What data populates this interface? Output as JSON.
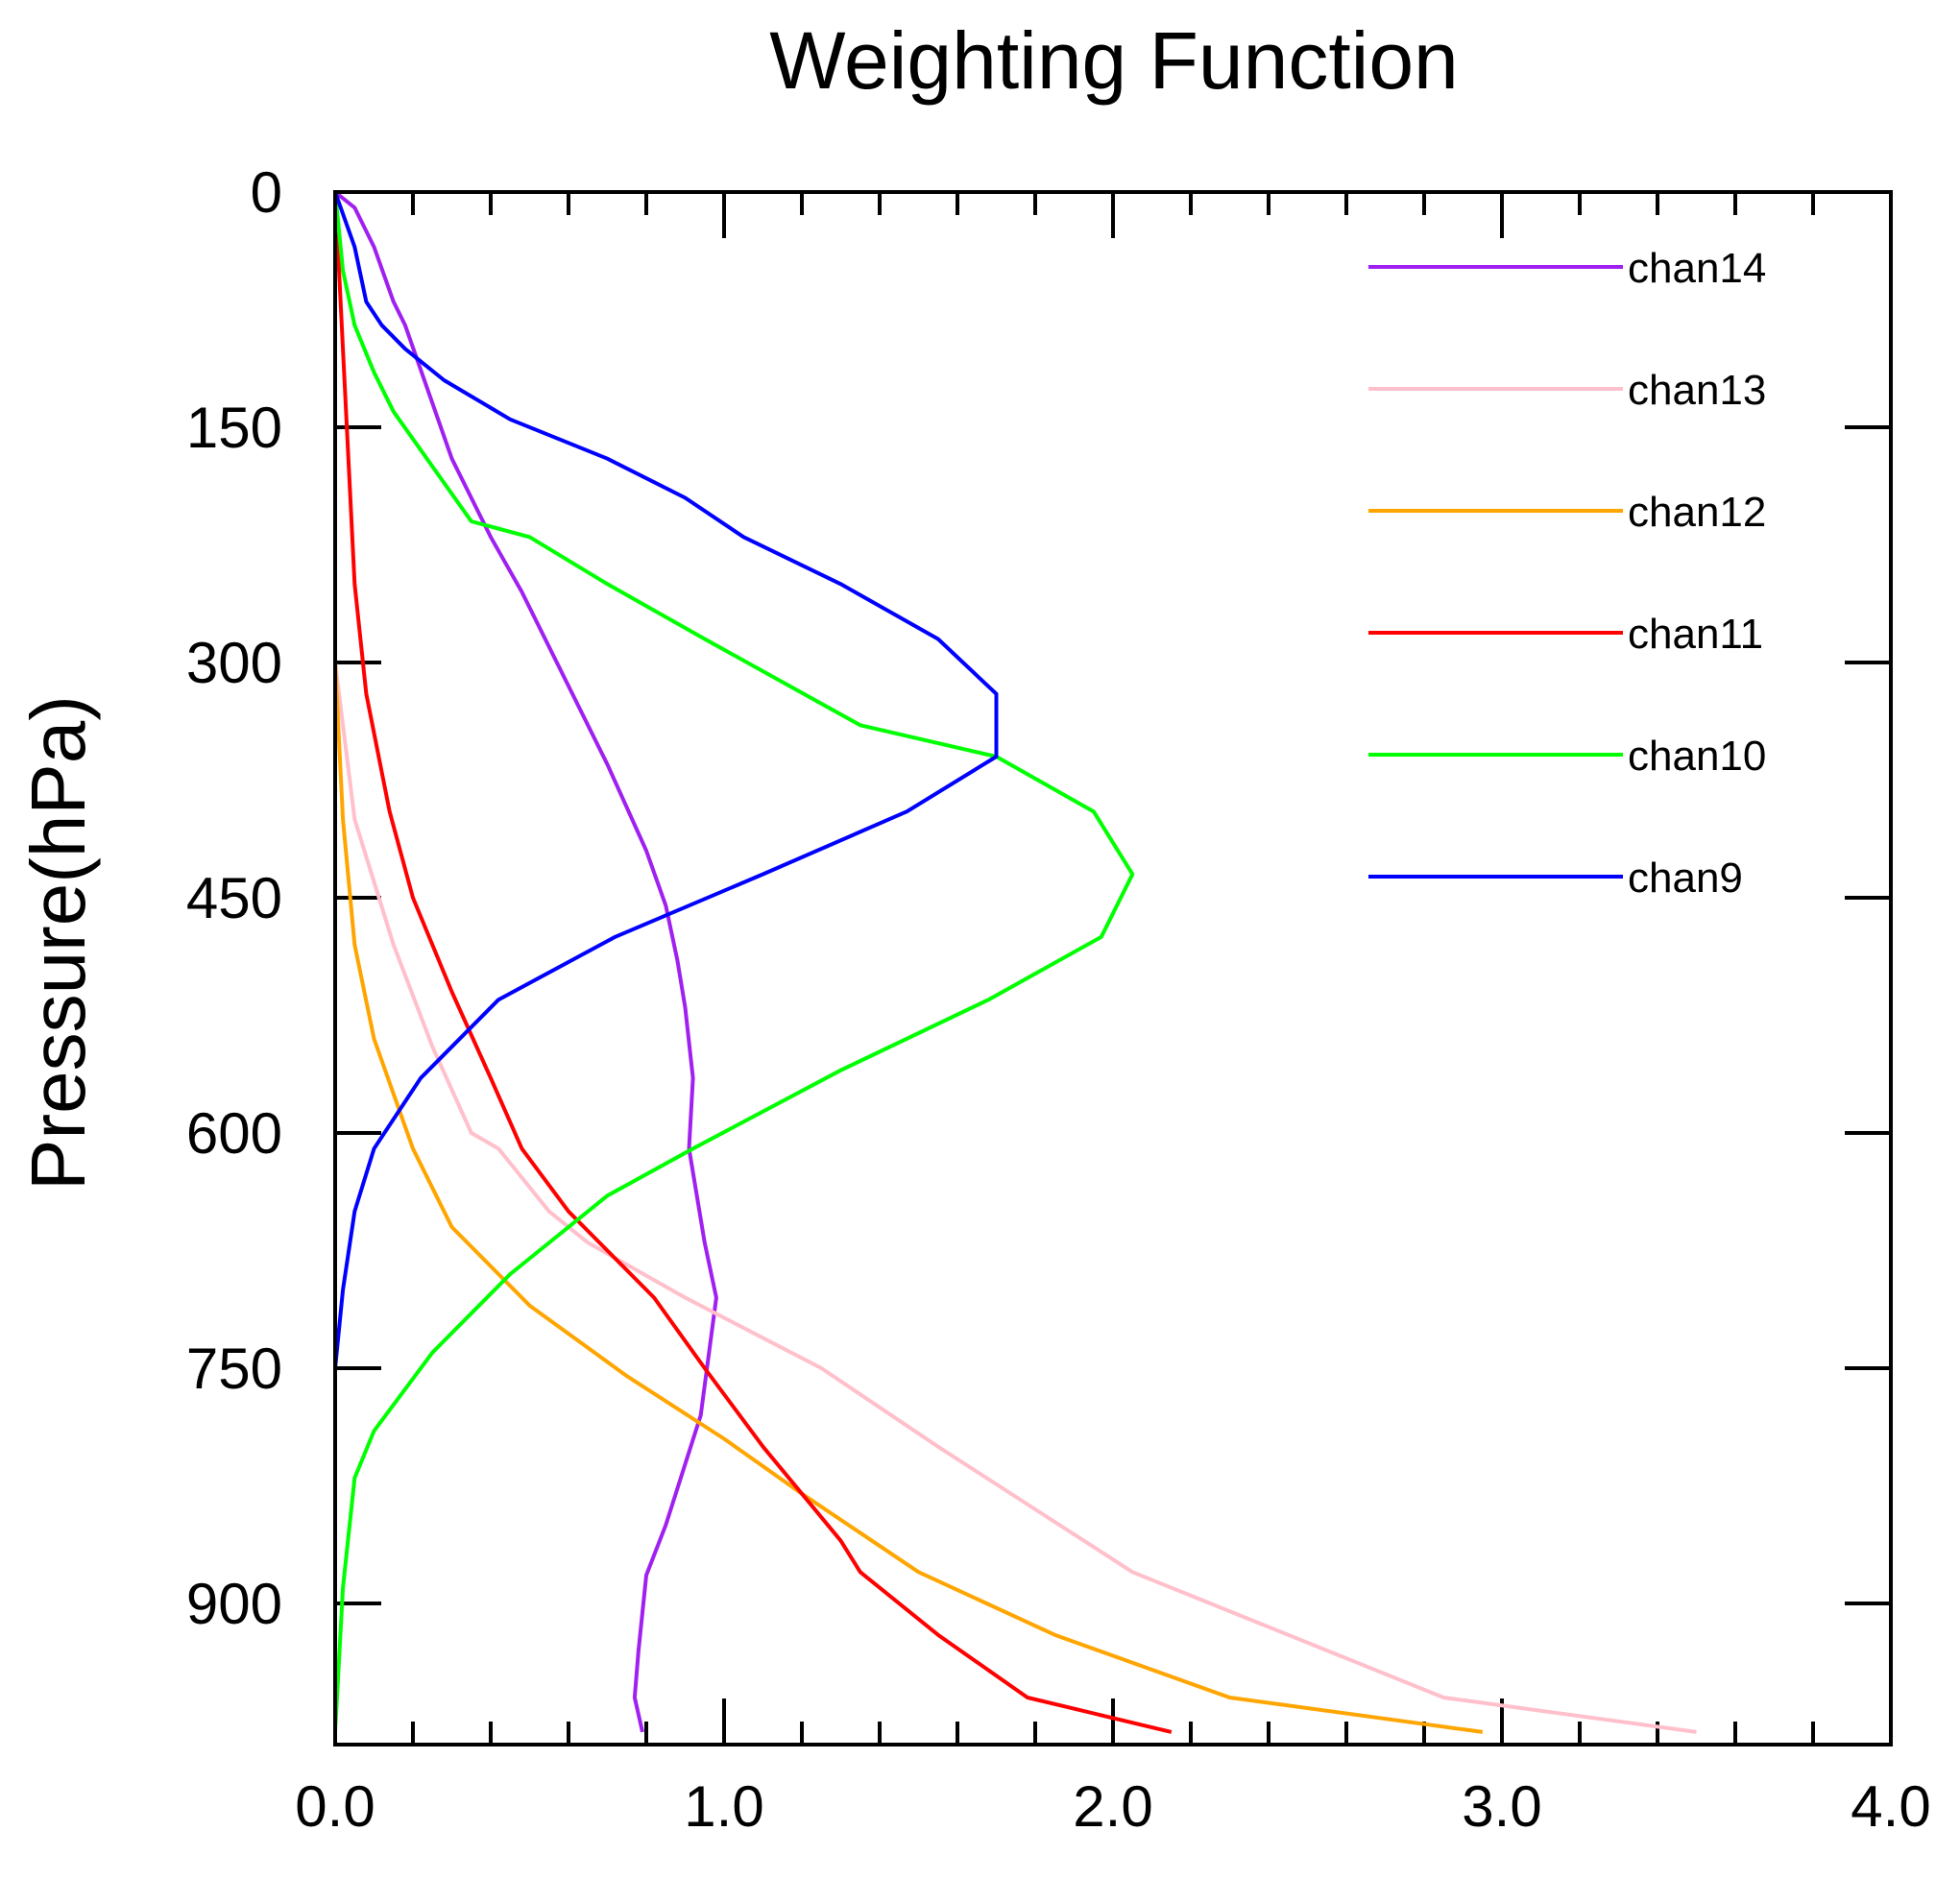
{
  "chart_data": {
    "type": "line",
    "title": "Weighting Function",
    "xlabel": "",
    "ylabel": "Pressure(hPa)",
    "xlim": [
      0,
      4
    ],
    "ylim": [
      0,
      990
    ],
    "y_inverted": true,
    "x_ticks": [
      0,
      1,
      2,
      3,
      4
    ],
    "x_tick_labels": [
      "0.0",
      "1.0",
      "2.0",
      "3.0",
      "4.0"
    ],
    "y_ticks": [
      0,
      150,
      300,
      450,
      600,
      750,
      900
    ],
    "y_tick_labels": [
      "0",
      "150",
      "300",
      "450",
      "600",
      "750",
      "900"
    ],
    "legend_position": "top-right",
    "series": [
      {
        "name": "chan14",
        "color": "#a020f0",
        "points": [
          [
            0.0,
            0
          ],
          [
            0.05,
            10
          ],
          [
            0.1,
            35
          ],
          [
            0.15,
            70
          ],
          [
            0.18,
            85
          ],
          [
            0.3,
            170
          ],
          [
            0.4,
            220
          ],
          [
            0.48,
            255
          ],
          [
            0.6,
            315
          ],
          [
            0.7,
            365
          ],
          [
            0.8,
            420
          ],
          [
            0.85,
            455
          ],
          [
            0.88,
            490
          ],
          [
            0.9,
            520
          ],
          [
            0.92,
            565
          ],
          [
            0.91,
            610
          ],
          [
            0.95,
            670
          ],
          [
            0.98,
            705
          ],
          [
            0.94,
            780
          ],
          [
            0.85,
            850
          ],
          [
            0.8,
            882
          ],
          [
            0.78,
            930
          ],
          [
            0.77,
            960
          ],
          [
            0.79,
            982
          ]
        ]
      },
      {
        "name": "chan13",
        "color": "#ffc0cb",
        "points": [
          [
            0.0,
            0
          ],
          [
            0.0,
            300
          ],
          [
            0.05,
            400
          ],
          [
            0.15,
            480
          ],
          [
            0.25,
            545
          ],
          [
            0.35,
            600
          ],
          [
            0.42,
            610
          ],
          [
            0.55,
            650
          ],
          [
            0.65,
            670
          ],
          [
            0.9,
            705
          ],
          [
            1.25,
            750
          ],
          [
            1.55,
            800
          ],
          [
            1.8,
            840
          ],
          [
            2.05,
            880
          ],
          [
            2.45,
            920
          ],
          [
            2.85,
            960
          ],
          [
            3.5,
            982
          ]
        ]
      },
      {
        "name": "chan12",
        "color": "#ffa500",
        "points": [
          [
            0.0,
            0
          ],
          [
            0.0,
            300
          ],
          [
            0.02,
            400
          ],
          [
            0.05,
            480
          ],
          [
            0.1,
            540
          ],
          [
            0.2,
            610
          ],
          [
            0.3,
            660
          ],
          [
            0.5,
            710
          ],
          [
            0.75,
            755
          ],
          [
            1.0,
            795
          ],
          [
            1.2,
            830
          ],
          [
            1.5,
            880
          ],
          [
            1.85,
            920
          ],
          [
            2.3,
            960
          ],
          [
            2.95,
            982
          ]
        ]
      },
      {
        "name": "chan11",
        "color": "#ff0000",
        "points": [
          [
            0.0,
            0
          ],
          [
            0.02,
            100
          ],
          [
            0.05,
            250
          ],
          [
            0.08,
            320
          ],
          [
            0.14,
            395
          ],
          [
            0.2,
            450
          ],
          [
            0.3,
            510
          ],
          [
            0.4,
            565
          ],
          [
            0.48,
            610
          ],
          [
            0.6,
            650
          ],
          [
            0.82,
            705
          ],
          [
            0.95,
            750
          ],
          [
            1.1,
            800
          ],
          [
            1.3,
            860
          ],
          [
            1.35,
            880
          ],
          [
            1.55,
            920
          ],
          [
            1.78,
            960
          ],
          [
            2.15,
            982
          ]
        ]
      },
      {
        "name": "chan10",
        "color": "#00ff00",
        "points": [
          [
            0.0,
            0
          ],
          [
            0.02,
            50
          ],
          [
            0.05,
            85
          ],
          [
            0.1,
            115
          ],
          [
            0.15,
            140
          ],
          [
            0.35,
            210
          ],
          [
            0.5,
            220
          ],
          [
            0.7,
            250
          ],
          [
            0.95,
            285
          ],
          [
            1.35,
            340
          ],
          [
            1.7,
            360
          ],
          [
            1.95,
            395
          ],
          [
            2.05,
            435
          ],
          [
            1.97,
            475
          ],
          [
            1.68,
            515
          ],
          [
            1.3,
            560
          ],
          [
            0.92,
            610
          ],
          [
            0.7,
            640
          ],
          [
            0.45,
            690
          ],
          [
            0.25,
            740
          ],
          [
            0.1,
            790
          ],
          [
            0.05,
            820
          ],
          [
            0.02,
            890
          ],
          [
            0.0,
            982
          ]
        ]
      },
      {
        "name": "chan9",
        "color": "#0000ff",
        "points": [
          [
            0.0,
            0
          ],
          [
            0.05,
            35
          ],
          [
            0.08,
            70
          ],
          [
            0.12,
            85
          ],
          [
            0.18,
            100
          ],
          [
            0.28,
            120
          ],
          [
            0.45,
            145
          ],
          [
            0.7,
            170
          ],
          [
            0.9,
            195
          ],
          [
            1.05,
            220
          ],
          [
            1.3,
            250
          ],
          [
            1.55,
            285
          ],
          [
            1.7,
            320
          ],
          [
            1.7,
            360
          ],
          [
            1.47,
            395
          ],
          [
            1.1,
            435
          ],
          [
            0.72,
            475
          ],
          [
            0.42,
            515
          ],
          [
            0.22,
            565
          ],
          [
            0.1,
            610
          ],
          [
            0.05,
            650
          ],
          [
            0.02,
            700
          ],
          [
            0.0,
            750
          ],
          [
            0.0,
            982
          ]
        ]
      }
    ]
  }
}
